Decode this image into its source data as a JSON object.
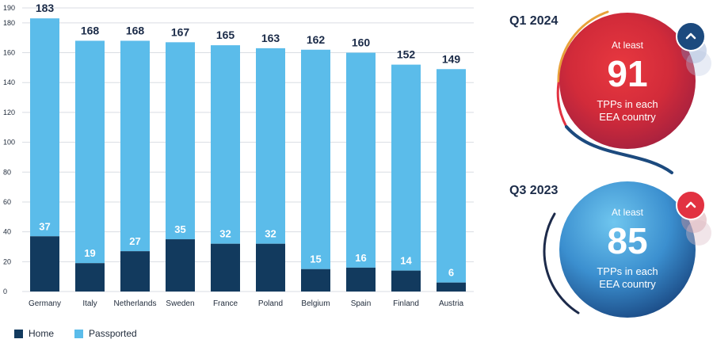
{
  "chart_data": {
    "type": "bar",
    "stacked": true,
    "categories": [
      "Germany",
      "Italy",
      "Netherlands",
      "Sweden",
      "France",
      "Poland",
      "Belgium",
      "Spain",
      "Finland",
      "Austria"
    ],
    "series": [
      {
        "name": "Home",
        "color": "#123a5e",
        "values": [
          37,
          19,
          27,
          35,
          32,
          32,
          15,
          16,
          14,
          6
        ]
      },
      {
        "name": "Passported",
        "color": "#5bbcea",
        "values": [
          146,
          149,
          141,
          132,
          133,
          131,
          147,
          144,
          138,
          143
        ]
      }
    ],
    "totals": [
      183,
      168,
      168,
      167,
      165,
      163,
      162,
      160,
      152,
      149
    ],
    "ylim": [
      0,
      190
    ],
    "yticks": [
      0,
      20,
      40,
      60,
      80,
      100,
      120,
      140,
      160,
      180,
      190
    ],
    "grid": true,
    "legend_position": "bottom-left"
  },
  "legend": {
    "home_label": "Home",
    "passported_label": "Passported"
  },
  "highlights": [
    {
      "period": "Q1 2024",
      "prefix": "At least",
      "value": "91",
      "line1": "TPPs in each",
      "line2": "EEA country",
      "trend_icon": "chevron-up-icon"
    },
    {
      "period": "Q3 2023",
      "prefix": "At least",
      "value": "85",
      "line1": "TPPs in each",
      "line2": "EEA country",
      "trend_icon": "chevron-up-icon"
    }
  ],
  "colors": {
    "home": "#123a5e",
    "passported": "#5bbcea",
    "q1_accent": "#e23241",
    "q3_accent": "#1c4a7e"
  }
}
